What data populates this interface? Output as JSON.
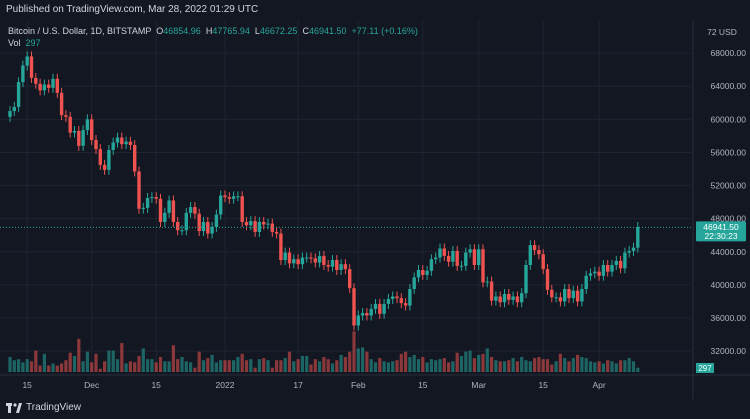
{
  "header": {
    "published": "Published on TradingView.com, Mar 28, 2022 01:29 UTC"
  },
  "legend": {
    "symbol": "Bitcoin / U.S. Dollar, 1D, BITSTAMP",
    "open_label": "O",
    "open": "46854.96",
    "high_label": "H",
    "high": "47765.94",
    "low_label": "L",
    "low": "46672.25",
    "close_label": "C",
    "close": "46941.50",
    "change": "+77.11 (+0.16%)",
    "vol_label": "Vol",
    "vol": "297"
  },
  "brand": {
    "name": "TradingView"
  },
  "colors": {
    "up": "#26a69a",
    "down": "#ef5350",
    "bg": "#131722",
    "grid": "#1f2330",
    "text": "#b2b5be"
  },
  "chart_data": {
    "type": "candlestick",
    "currency": "72 USD",
    "y_ticks": [
      32000,
      36000,
      40000,
      44000,
      48000,
      52000,
      56000,
      60000,
      64000,
      68000
    ],
    "y_tick_labels": [
      "32000.00",
      "36000.00",
      "40000.00",
      "44000.00",
      "48000.00",
      "52000.00",
      "56000.00",
      "60000.00",
      "64000.00",
      "68000.00"
    ],
    "ylim": [
      30200,
      72000
    ],
    "x_tick_labels": [
      "15",
      "Dec",
      "15",
      "2022",
      "17",
      "Feb",
      "15",
      "Mar",
      "15",
      "Apr"
    ],
    "x_tick_index": [
      4,
      19,
      34,
      50,
      67,
      81,
      96,
      109,
      124,
      137
    ],
    "last_price": 46941.5,
    "last_price_label": "46941.50",
    "countdown": "22:30:23",
    "vol_label": "297",
    "closes": [
      61000,
      61500,
      64500,
      66500,
      67600,
      65000,
      64300,
      63500,
      64200,
      63800,
      64900,
      63200,
      60500,
      60300,
      58400,
      58600,
      56800,
      58700,
      60000,
      57500,
      56400,
      54500,
      53900,
      56300,
      57200,
      57800,
      57000,
      57300,
      56900,
      53700,
      49200,
      49300,
      50500,
      50600,
      50400,
      47600,
      48700,
      50200,
      47600,
      46600,
      46600,
      48700,
      49400,
      48600,
      46500,
      47600,
      46200,
      47000,
      48500,
      50800,
      50600,
      50400,
      50700,
      50700,
      47600,
      47200,
      47700,
      46400,
      47600,
      47300,
      47400,
      46400,
      46200,
      43000,
      43900,
      42600,
      43100,
      42500,
      43300,
      43300,
      43200,
      42700,
      43500,
      42400,
      42200,
      43000,
      41800,
      42500,
      41900,
      39600,
      35100,
      36300,
      36600,
      36300,
      37100,
      37700,
      36500,
      37700,
      38300,
      38600,
      38400,
      37800,
      37500,
      39500,
      40900,
      41800,
      41200,
      41700,
      43100,
      43300,
      44400,
      43500,
      42800,
      44100,
      42300,
      42300,
      43900,
      44300,
      42400,
      44300,
      40300,
      40400,
      38100,
      38600,
      37900,
      38900,
      38200,
      38600,
      37900,
      39000,
      42400,
      44800,
      44200,
      43700,
      41900,
      39400,
      38500,
      38500,
      38000,
      39500,
      38400,
      39300,
      38000,
      39500,
      41100,
      41400,
      41600,
      41100,
      42400,
      41600,
      42400,
      42900,
      42000,
      43900,
      44100,
      44500,
      47000
    ],
    "volumes": [
      14,
      11,
      12,
      9,
      12,
      10,
      20,
      6,
      17,
      6,
      8,
      6,
      8,
      11,
      18,
      15,
      31,
      10,
      19,
      9,
      17,
      3,
      10,
      20,
      20,
      12,
      27,
      8,
      10,
      9,
      15,
      22,
      12,
      12,
      9,
      14,
      10,
      10,
      25,
      12,
      14,
      10,
      9,
      4,
      19,
      11,
      13,
      16,
      9,
      11,
      11,
      11,
      11,
      14,
      17,
      11,
      12,
      4,
      12,
      13,
      11,
      4,
      11,
      11,
      13,
      19,
      10,
      12,
      15,
      15,
      7,
      12,
      10,
      14,
      12,
      8,
      11,
      16,
      14,
      19,
      38,
      22,
      23,
      19,
      12,
      9,
      13,
      10,
      9,
      10,
      11,
      17,
      19,
      14,
      16,
      12,
      14,
      9,
      12,
      11,
      12,
      13,
      9,
      10,
      18,
      15,
      19,
      20,
      13,
      16,
      17,
      22,
      14,
      11,
      10,
      10,
      11,
      13,
      10,
      14,
      11,
      10,
      13,
      14,
      12,
      12,
      7,
      10,
      17,
      13,
      10,
      13,
      16,
      14,
      13,
      10,
      9,
      10,
      8,
      11,
      10,
      8,
      11,
      11,
      13,
      10,
      4
    ]
  }
}
